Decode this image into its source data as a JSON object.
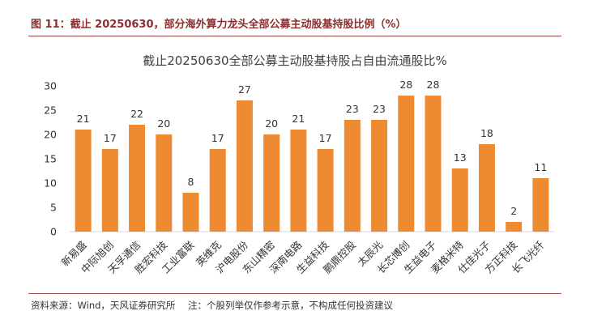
{
  "caption": "图 11：截止 20250630，部分海外算力龙头全部公募主动股基持股比例（%）",
  "chart_data": {
    "type": "bar",
    "title": "截止20250630全部公募主动股基持股占自由流通股比%",
    "categories": [
      "新易盛",
      "中际旭创",
      "天孚通信",
      "胜宏科技",
      "工业富联",
      "英维克",
      "沪电股份",
      "东山精密",
      "深南电路",
      "生益科技",
      "鹏鼎控股",
      "太辰光",
      "长芯博创",
      "生益电子",
      "麦格米特",
      "仕佳光子",
      "方正科技",
      "长飞光纤"
    ],
    "values": [
      21,
      17,
      22,
      20,
      8,
      17,
      27,
      20,
      21,
      17,
      23,
      23,
      28,
      28,
      13,
      18,
      2,
      11
    ],
    "ylim": [
      0,
      30
    ],
    "yticks": [
      0,
      5,
      10,
      15,
      20,
      25,
      30
    ],
    "grid": false,
    "legend": "none",
    "bar_color": "#EE8A32"
  },
  "footer": {
    "source": "资料来源：Wind，天风证券研究所",
    "note": "注：个股列举仅作参考示意，不构成任何投资建议"
  },
  "colors": {
    "caption": "#8B2E2E",
    "rule": "#9C4A4A",
    "text": "#333333"
  }
}
